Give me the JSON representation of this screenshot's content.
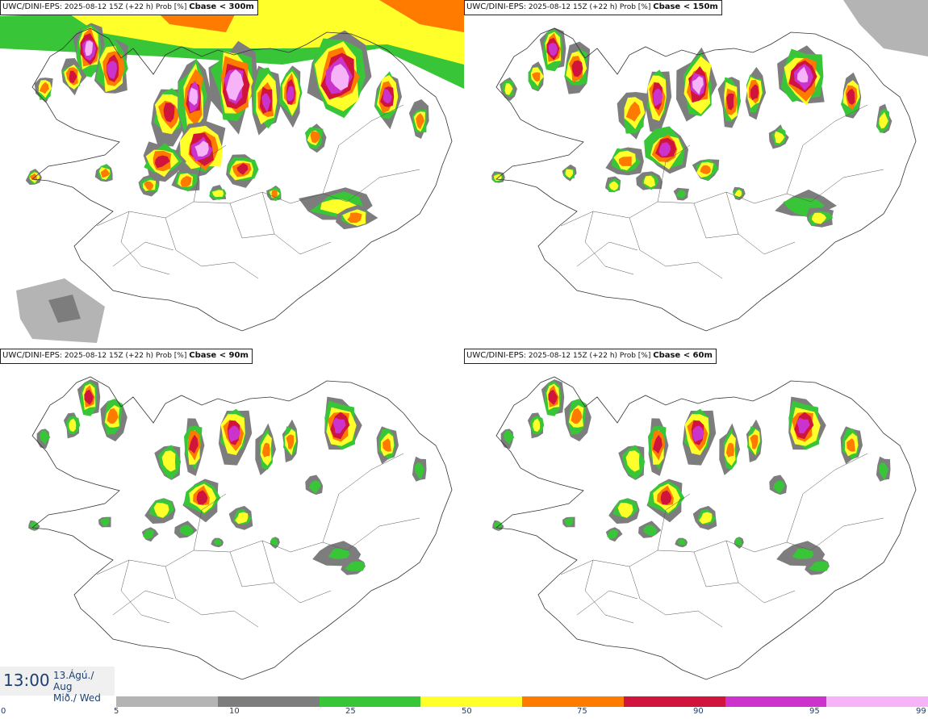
{
  "panels": [
    {
      "model": "UWC/DINI-EPS",
      "meta": ": 2025-08-12 15Z (+22 h) Prob [%]",
      "param": "Cbase < 300m",
      "level": 4
    },
    {
      "model": "UWC/DINI-EPS",
      "meta": ": 2025-08-12 15Z (+22 h) Prob [%]",
      "param": "Cbase < 150m",
      "level": 3
    },
    {
      "model": "UWC/DINI-EPS",
      "meta": ": 2025-08-12 15Z (+22 h) Prob [%]",
      "param": "Cbase < 90m",
      "level": 2
    },
    {
      "model": "UWC/DINI-EPS",
      "meta": ": 2025-08-12 15Z (+22 h) Prob [%]",
      "param": "Cbase < 60m",
      "level": 2
    }
  ],
  "time": "13:00",
  "date_line1": "13.Ágú./ Aug",
  "date_line2": "Mið./ Wed",
  "colorbar": {
    "ticks": [
      "0",
      "5",
      "10",
      "25",
      "50",
      "75",
      "90",
      "95",
      "99"
    ],
    "colors": [
      "#b4b4b4",
      "#7d7d7d",
      "#38c638",
      "#ffff2a",
      "#ff7b00",
      "#d0143c",
      "#cc33cc",
      "#f7b3f7"
    ]
  }
}
